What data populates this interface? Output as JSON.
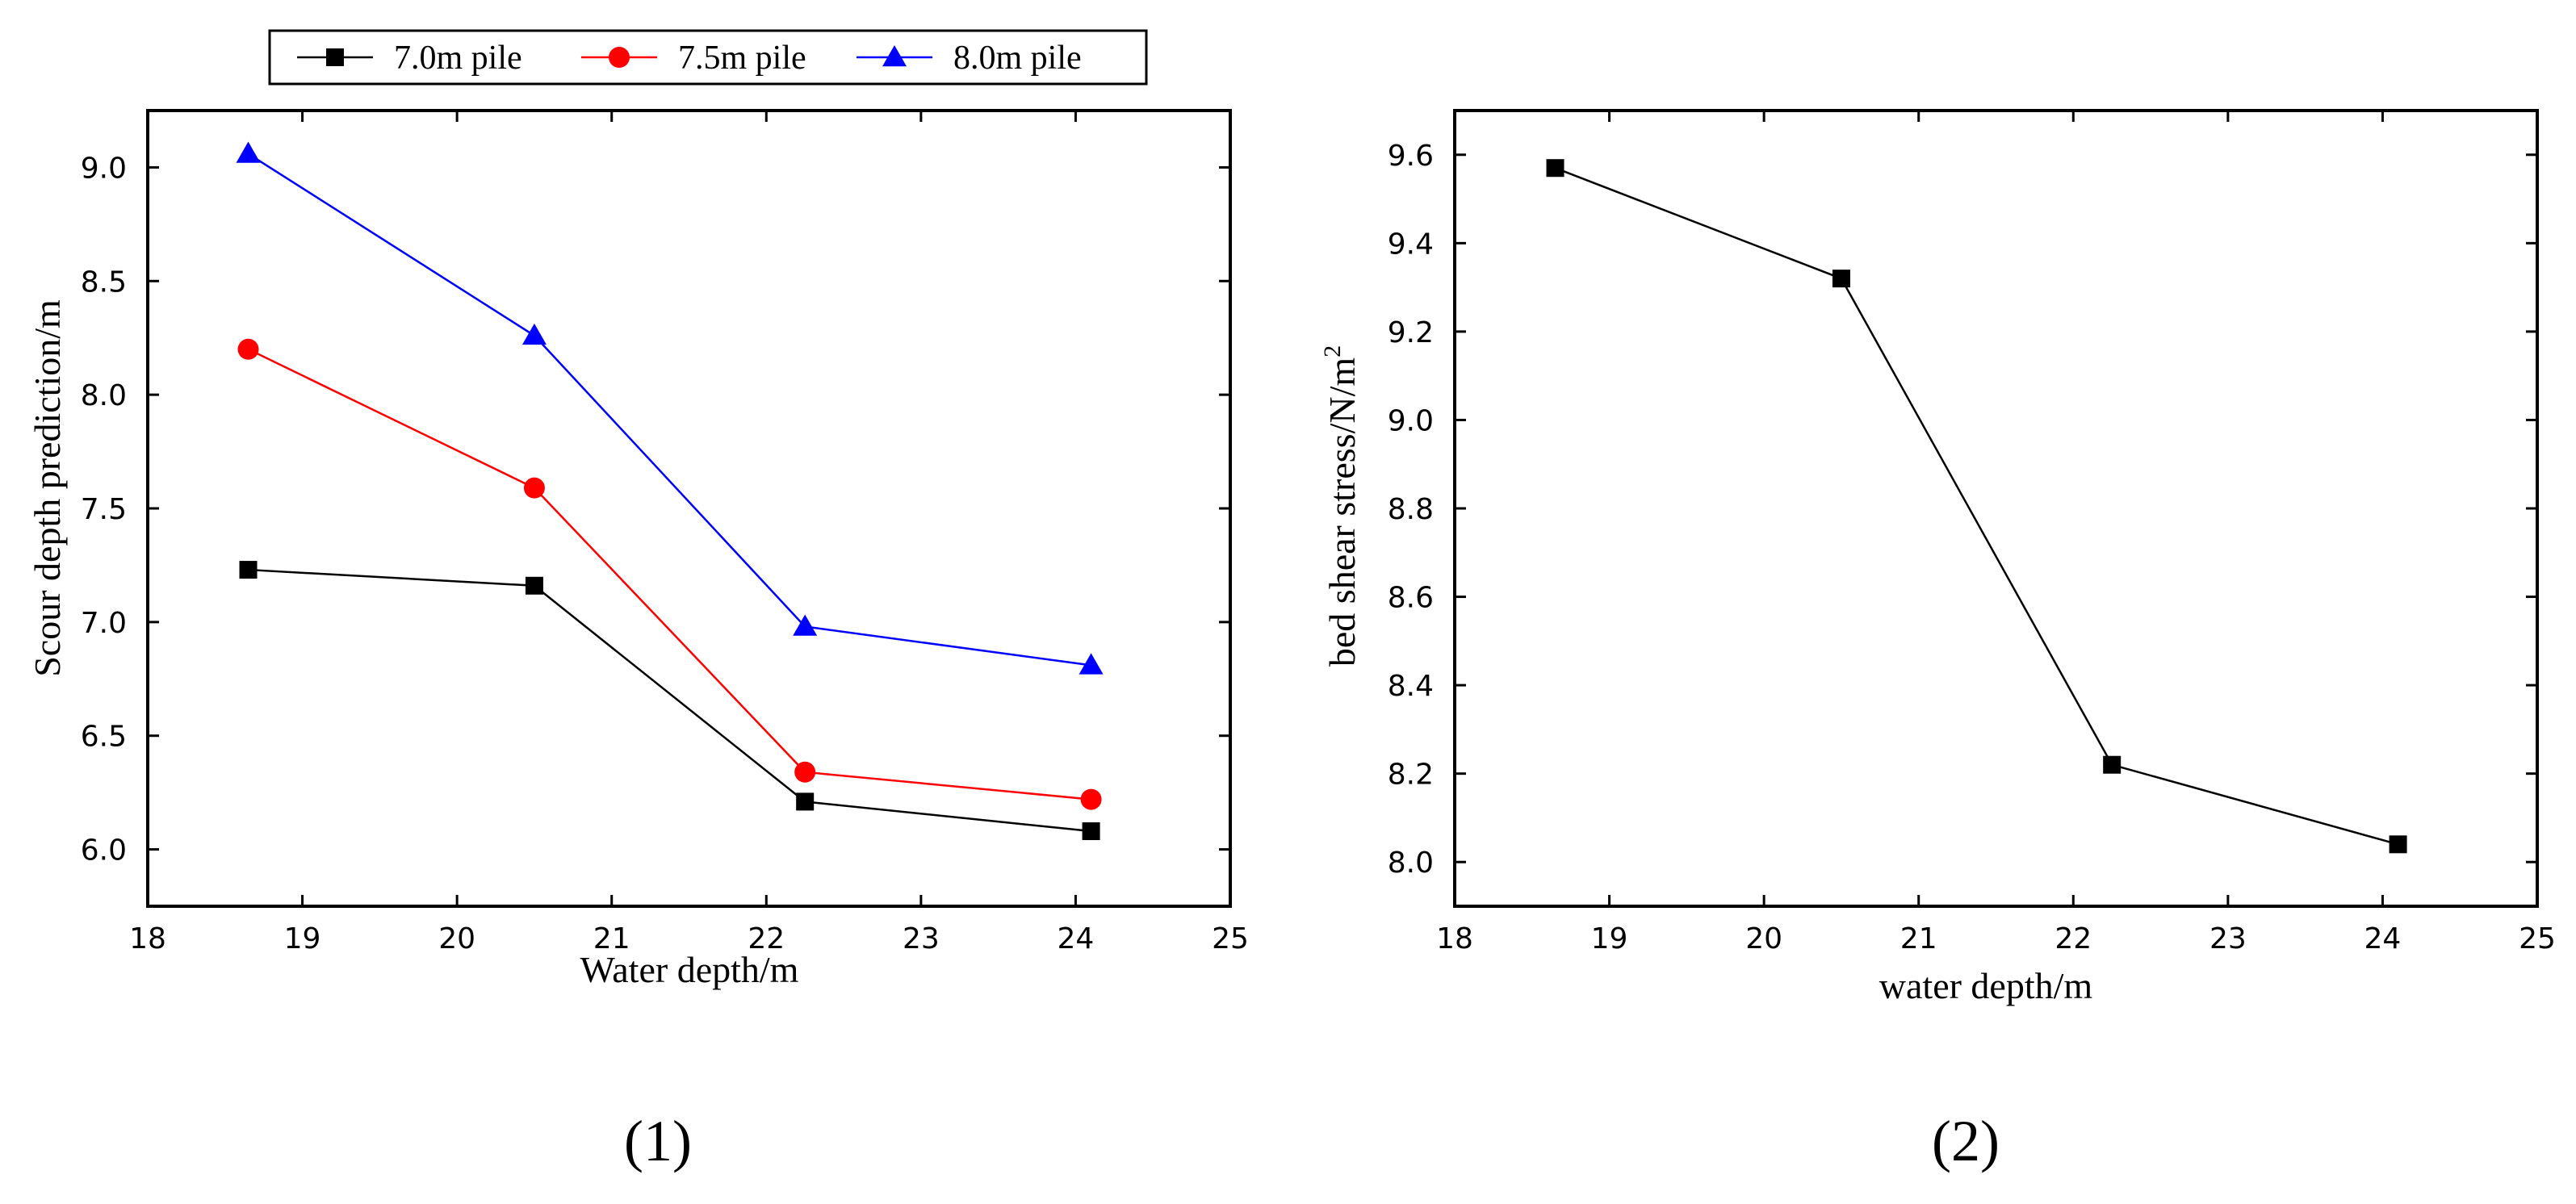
{
  "chart_data": [
    {
      "type": "line",
      "panel_label": "(1)",
      "xlabel": "Water depth/m",
      "ylabel": "Scour depth prediction/m",
      "xlim": [
        18,
        25
      ],
      "ylim": [
        5.75,
        9.25
      ],
      "xticks": [
        18,
        19,
        20,
        21,
        22,
        23,
        24,
        25
      ],
      "xtick_labels": [
        "18",
        "19",
        "20",
        "21",
        "22",
        "23",
        "24",
        "25"
      ],
      "yticks": [
        6.0,
        6.5,
        7.0,
        7.5,
        8.0,
        8.5,
        9.0
      ],
      "ytick_labels": [
        "6.0",
        "6.5",
        "7.0",
        "7.5",
        "8.0",
        "8.5",
        "9.0"
      ],
      "legend_position": "top",
      "x": [
        18.65,
        20.5,
        22.25,
        24.1
      ],
      "series": [
        {
          "name": "7.0m pile",
          "color": "#000000",
          "marker": "square",
          "values": [
            7.23,
            7.16,
            6.21,
            6.08
          ]
        },
        {
          "name": "7.5m pile",
          "color": "#ff0000",
          "marker": "circle",
          "values": [
            8.2,
            7.59,
            6.34,
            6.22
          ]
        },
        {
          "name": "8.0m pile",
          "color": "#0000ff",
          "marker": "triangle",
          "values": [
            9.06,
            8.26,
            6.98,
            6.81
          ]
        }
      ]
    },
    {
      "type": "line",
      "panel_label": "(2)",
      "xlabel": "water depth/m",
      "ylabel": "bed shear stress/N/m",
      "ylabel_superscript": "2",
      "xlim": [
        18,
        25
      ],
      "ylim": [
        7.9,
        9.7
      ],
      "xticks": [
        18,
        19,
        20,
        21,
        22,
        23,
        24,
        25
      ],
      "xtick_labels": [
        "18",
        "19",
        "20",
        "21",
        "22",
        "23",
        "24",
        "25"
      ],
      "yticks": [
        8.0,
        8.2,
        8.4,
        8.6,
        8.8,
        9.0,
        9.2,
        9.4,
        9.6
      ],
      "ytick_labels": [
        "8.0",
        "8.2",
        "8.4",
        "8.6",
        "8.8",
        "9.0",
        "9.2",
        "9.4",
        "9.6"
      ],
      "x": [
        18.65,
        20.5,
        22.25,
        24.1
      ],
      "series": [
        {
          "name": "bed shear stress",
          "color": "#000000",
          "marker": "square",
          "values": [
            9.57,
            9.32,
            8.22,
            8.04
          ]
        }
      ]
    }
  ]
}
